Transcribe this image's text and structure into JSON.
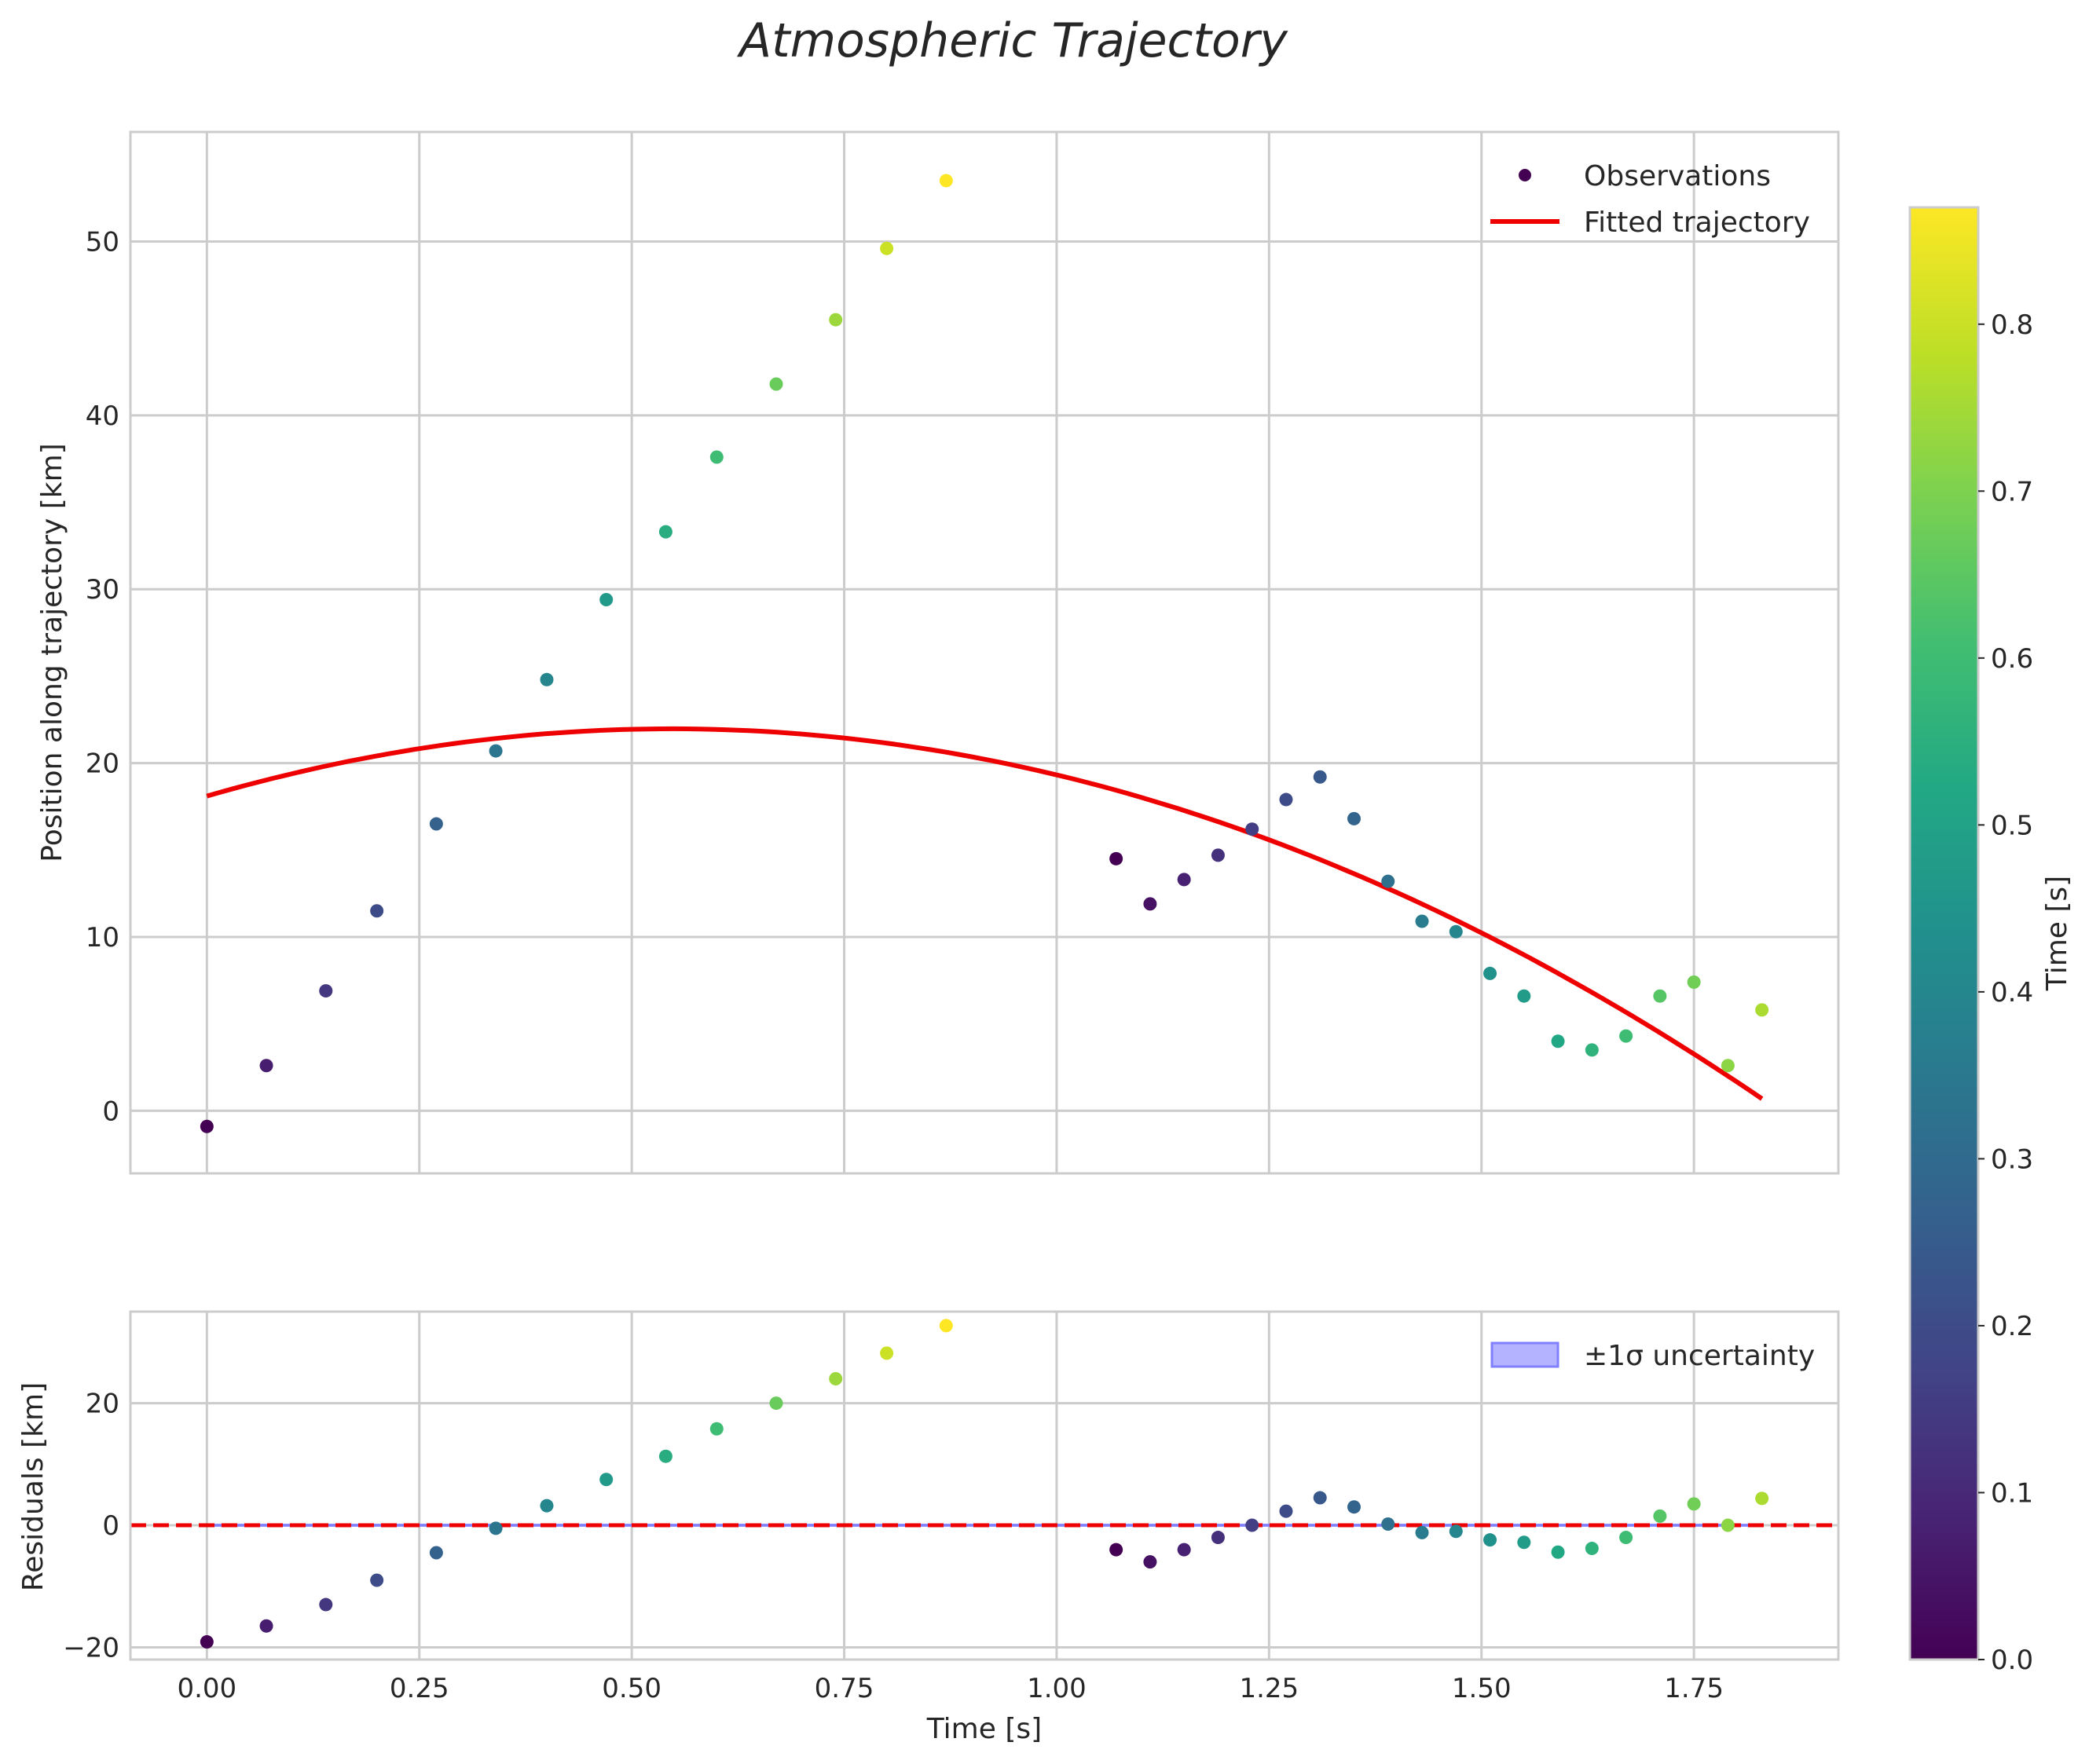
{
  "chart_data": [
    {
      "type": "scatter",
      "title": "Atmospheric Trajectory",
      "xlabel": "",
      "ylabel": "Position along trajectory [km]",
      "xlim": [
        -0.09,
        1.92
      ],
      "ylim": [
        -3.6,
        56.3
      ],
      "x_ticks": [
        0.0,
        0.25,
        0.5,
        0.75,
        1.0,
        1.25,
        1.5,
        1.75
      ],
      "x_tick_labels": [
        "0.00",
        "0.25",
        "0.50",
        "0.75",
        "1.00",
        "1.25",
        "1.50",
        "1.75"
      ],
      "x_tick_labels_visible": false,
      "y_ticks": [
        0,
        10,
        20,
        30,
        40,
        50
      ],
      "y_tick_labels": [
        "0",
        "10",
        "20",
        "30",
        "40",
        "50"
      ],
      "grid": true,
      "legend_position": "upper right",
      "legend_entries": [
        "Observations",
        "Fitted trajectory"
      ],
      "series": [
        {
          "name": "Observations",
          "kind": "scatter",
          "color_by": "Time [s]",
          "x": [
            0.0,
            0.07,
            0.14,
            0.2,
            0.27,
            0.34,
            0.4,
            0.47,
            0.54,
            0.6,
            0.67,
            0.74,
            0.8,
            0.87,
            1.07,
            1.11,
            1.15,
            1.19,
            1.23,
            1.27,
            1.31,
            1.35,
            1.39,
            1.43,
            1.47,
            1.51,
            1.55,
            1.59,
            1.63,
            1.67,
            1.71,
            1.75,
            1.79,
            1.83
          ],
          "y": [
            -0.9,
            2.6,
            6.9,
            11.5,
            16.5,
            20.7,
            24.8,
            29.4,
            33.3,
            37.6,
            41.8,
            45.5,
            49.6,
            53.5,
            14.5,
            11.9,
            13.3,
            14.7,
            16.2,
            17.9,
            19.2,
            16.8,
            13.2,
            10.9,
            10.3,
            7.9,
            6.6,
            4.0,
            3.5,
            4.3,
            6.6,
            7.4,
            2.6,
            5.8
          ],
          "c": [
            0.0,
            0.07,
            0.14,
            0.2,
            0.27,
            0.34,
            0.4,
            0.47,
            0.54,
            0.6,
            0.67,
            0.74,
            0.8,
            0.87,
            0.0,
            0.04,
            0.08,
            0.12,
            0.16,
            0.2,
            0.24,
            0.28,
            0.32,
            0.36,
            0.4,
            0.44,
            0.48,
            0.52,
            0.56,
            0.6,
            0.64,
            0.68,
            0.72,
            0.76
          ]
        },
        {
          "name": "Fitted trajectory",
          "kind": "line",
          "color": "#ee0000",
          "model": "quadratic",
          "coefficients": {
            "a": -12.93,
            "b": 14.15,
            "c": 18.1
          },
          "x_range": [
            0.0,
            1.83
          ]
        }
      ]
    },
    {
      "type": "scatter",
      "title": "",
      "xlabel": "Time [s]",
      "ylabel": "Residuals [km]",
      "xlim": [
        -0.09,
        1.92
      ],
      "ylim": [
        -22,
        35
      ],
      "x_ticks": [
        0.0,
        0.25,
        0.5,
        0.75,
        1.0,
        1.25,
        1.5,
        1.75
      ],
      "x_tick_labels": [
        "0.00",
        "0.25",
        "0.50",
        "0.75",
        "1.00",
        "1.25",
        "1.50",
        "1.75"
      ],
      "y_ticks": [
        -20,
        0,
        20
      ],
      "y_tick_labels": [
        "−20",
        "0",
        "20"
      ],
      "grid": true,
      "legend_position": "upper right",
      "legend_entries": [
        "±1σ uncertainty"
      ],
      "reference_line": {
        "y": 0,
        "style": "dashed",
        "color": "#ee0000"
      },
      "uncertainty_band": {
        "sigma": 0.05,
        "color": "#8080ff"
      },
      "series": [
        {
          "name": "Residuals",
          "kind": "scatter",
          "color_by": "Time [s]",
          "x": [
            0.0,
            0.07,
            0.14,
            0.2,
            0.27,
            0.34,
            0.4,
            0.47,
            0.54,
            0.6,
            0.67,
            0.74,
            0.8,
            0.87,
            1.07,
            1.11,
            1.15,
            1.19,
            1.23,
            1.27,
            1.31,
            1.35,
            1.39,
            1.43,
            1.47,
            1.51,
            1.55,
            1.59,
            1.63,
            1.67,
            1.71,
            1.75,
            1.79,
            1.83
          ],
          "y": [
            -19.1,
            -16.5,
            -13.0,
            -9.0,
            -4.5,
            -0.5,
            3.2,
            7.5,
            11.3,
            15.8,
            20.0,
            24.0,
            28.2,
            32.7,
            -4.0,
            -6.0,
            -4.0,
            -2.0,
            0.0,
            2.3,
            4.5,
            3.0,
            0.2,
            -1.2,
            -1.0,
            -2.4,
            -2.8,
            -4.4,
            -3.8,
            -2.0,
            1.5,
            3.5,
            0.0,
            4.4
          ],
          "c": [
            0.0,
            0.07,
            0.14,
            0.2,
            0.27,
            0.34,
            0.4,
            0.47,
            0.54,
            0.6,
            0.67,
            0.74,
            0.8,
            0.87,
            0.0,
            0.04,
            0.08,
            0.12,
            0.16,
            0.2,
            0.24,
            0.28,
            0.32,
            0.36,
            0.4,
            0.44,
            0.48,
            0.52,
            0.56,
            0.6,
            0.64,
            0.68,
            0.72,
            0.76
          ]
        }
      ]
    },
    {
      "type": "colorbar",
      "label": "Time [s]",
      "colormap": "viridis",
      "range": [
        0.0,
        0.87
      ],
      "ticks": [
        0.0,
        0.1,
        0.2,
        0.3,
        0.4,
        0.5,
        0.6,
        0.7,
        0.8
      ],
      "tick_labels": [
        "0.0",
        "0.1",
        "0.2",
        "0.3",
        "0.4",
        "0.5",
        "0.6",
        "0.7",
        "0.8"
      ]
    }
  ],
  "colors": {
    "fit_line": "#ee0000",
    "grid": "#cccccc",
    "spine": "#cccccc",
    "band_fill": "#b3b3ff",
    "band_edge": "#8080ff",
    "text": "#262626"
  }
}
